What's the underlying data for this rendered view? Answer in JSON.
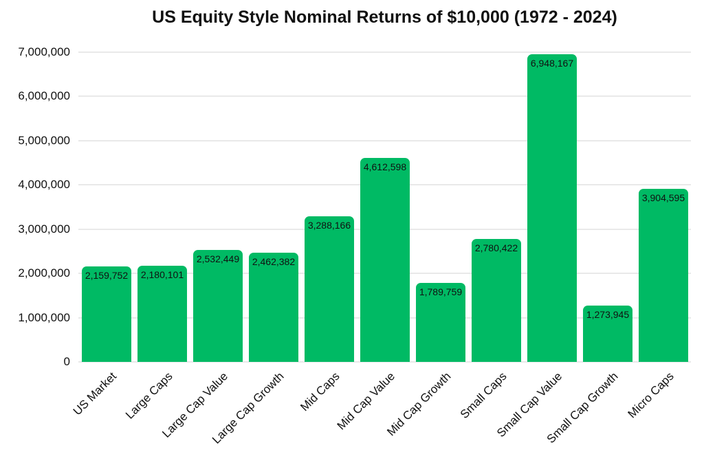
{
  "title": "US Equity Style Nominal Returns of $10,000 (1972 - 2024)",
  "colors": {
    "bar": "#00ba64",
    "gridline": "#e9e9e9",
    "text": "#111111",
    "background": "#ffffff"
  },
  "chart_data": {
    "type": "bar",
    "title": "US Equity Style Nominal Returns of $10,000 (1972 - 2024)",
    "categories": [
      "US Market",
      "Large Caps",
      "Large Cap Value",
      "Large Cap Growth",
      "Mid Caps",
      "Mid Cap Value",
      "Mid Cap Growth",
      "Small Caps",
      "Small Cap Value",
      "Small Cap Growth",
      "Micro Caps"
    ],
    "values": [
      2159752,
      2180101,
      2532449,
      2462382,
      3288166,
      4612598,
      1789759,
      2780422,
      6948167,
      1273945,
      3904595
    ],
    "value_labels": [
      "2,159,752",
      "2,180,101",
      "2,532,449",
      "2,462,382",
      "3,288,166",
      "4,612,598",
      "1,789,759",
      "2,780,422",
      "6,948,167",
      "1,273,945",
      "3,904,595"
    ],
    "xlabel": "",
    "ylabel": "",
    "ylim": [
      0,
      7000000
    ],
    "ytick_interval": 1000000,
    "ytick_labels": [
      "0",
      "1,000,000",
      "2,000,000",
      "3,000,000",
      "4,000,000",
      "5,000,000",
      "6,000,000",
      "7,000,000"
    ],
    "grid": true,
    "legend": false,
    "bar_color": "#00ba64",
    "value_label_position": "inside-top",
    "x_label_rotation_deg": -45
  }
}
